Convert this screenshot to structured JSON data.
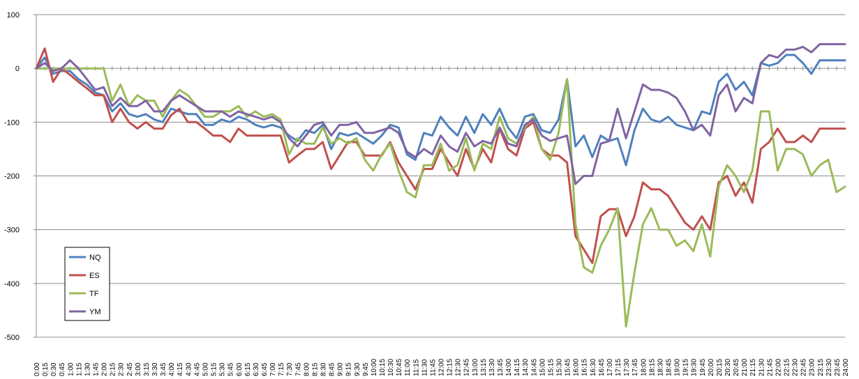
{
  "chart_data": {
    "type": "line",
    "title": "",
    "xlabel": "",
    "ylabel": "",
    "ylim": [
      -500,
      100
    ],
    "yticks": [
      100,
      0,
      -100,
      -200,
      -300,
      -400,
      -500
    ],
    "grid": "horizontal",
    "legend_position": "left",
    "x": [
      "0:00",
      "0:15",
      "0:30",
      "0:45",
      "1:00",
      "1:15",
      "1:30",
      "1:45",
      "2:00",
      "2:15",
      "2:30",
      "2:45",
      "3:00",
      "3:15",
      "3:30",
      "3:45",
      "4:00",
      "4:15",
      "4:30",
      "4:45",
      "5:00",
      "5:15",
      "5:30",
      "5:45",
      "6:00",
      "6:15",
      "6:30",
      "6:45",
      "7:00",
      "7:15",
      "7:30",
      "7:45",
      "8:00",
      "8:15",
      "8:30",
      "8:45",
      "9:00",
      "9:15",
      "9:30",
      "9:45",
      "10:00",
      "10:15",
      "10:30",
      "10:45",
      "11:00",
      "11:15",
      "11:30",
      "11:45",
      "12:00",
      "12:15",
      "12:30",
      "12:45",
      "13:00",
      "13:15",
      "13:30",
      "13:45",
      "14:00",
      "14:15",
      "14:30",
      "14:45",
      "15:00",
      "15:15",
      "15:30",
      "15:45",
      "16:00",
      "16:15",
      "16:30",
      "16:45",
      "17:00",
      "17:15",
      "17:30",
      "17:45",
      "18:00",
      "18:15",
      "18:30",
      "18:45",
      "19:00",
      "19:15",
      "19:30",
      "19:45",
      "20:00",
      "20:15",
      "20:30",
      "20:45",
      "21:00",
      "21:15",
      "21:30",
      "21:45",
      "22:00",
      "22:15",
      "22:30",
      "22:45",
      "23:00",
      "23:15",
      "23:30",
      "23:45",
      "24:00"
    ],
    "series": [
      {
        "name": "NQ",
        "color": "#4f81bd",
        "values": [
          0,
          20,
          -10,
          -5,
          -5,
          -20,
          -30,
          -45,
          -50,
          -80,
          -65,
          -85,
          -90,
          -85,
          -95,
          -100,
          -75,
          -80,
          -85,
          -85,
          -105,
          -105,
          -95,
          -100,
          -90,
          -95,
          -105,
          -110,
          -105,
          -110,
          -125,
          -135,
          -115,
          -120,
          -105,
          -150,
          -120,
          -125,
          -120,
          -130,
          -140,
          -125,
          -105,
          -110,
          -160,
          -170,
          -120,
          -125,
          -90,
          -110,
          -125,
          -90,
          -120,
          -85,
          -105,
          -75,
          -110,
          -130,
          -90,
          -85,
          -115,
          -120,
          -95,
          -20,
          -145,
          -125,
          -165,
          -125,
          -135,
          -130,
          -180,
          -115,
          -75,
          -95,
          -100,
          -90,
          -105,
          -110,
          -115,
          -80,
          -85,
          -25,
          -10,
          -40,
          -25,
          -50,
          10,
          5,
          10,
          25,
          25,
          10,
          -10,
          15,
          15,
          15,
          15
        ]
      },
      {
        "name": "ES",
        "color": "#c0504d",
        "values": [
          0,
          37,
          -25,
          0,
          -12,
          -25,
          -37,
          -50,
          -50,
          -100,
          -75,
          -100,
          -112,
          -100,
          -112,
          -112,
          -87,
          -75,
          -100,
          -100,
          -112,
          -125,
          -125,
          -137,
          -112,
          -125,
          -125,
          -125,
          -125,
          -125,
          -175,
          -162,
          -150,
          -150,
          -137,
          -187,
          -162,
          -137,
          -137,
          -162,
          -162,
          -162,
          -137,
          -175,
          -200,
          -225,
          -187,
          -187,
          -150,
          -175,
          -200,
          -150,
          -187,
          -150,
          -175,
          -112,
          -150,
          -162,
          -112,
          -100,
          -150,
          -162,
          -162,
          -175,
          -312,
          -337,
          -362,
          -275,
          -262,
          -262,
          -312,
          -275,
          -212,
          -225,
          -225,
          -237,
          -262,
          -287,
          -300,
          -275,
          -300,
          -212,
          -200,
          -237,
          -212,
          -250,
          -150,
          -137,
          -112,
          -137,
          -137,
          -125,
          -137,
          -112,
          -112,
          -112,
          -112
        ]
      },
      {
        "name": "TF",
        "color": "#9bbb59",
        "values": [
          0,
          0,
          0,
          0,
          0,
          0,
          0,
          0,
          0,
          -60,
          -30,
          -70,
          -50,
          -60,
          -60,
          -90,
          -60,
          -40,
          -50,
          -70,
          -90,
          -90,
          -80,
          -80,
          -70,
          -90,
          -80,
          -90,
          -85,
          -95,
          -160,
          -130,
          -140,
          -140,
          -110,
          -140,
          -130,
          -140,
          -130,
          -170,
          -190,
          -160,
          -140,
          -190,
          -230,
          -240,
          -180,
          -180,
          -140,
          -190,
          -180,
          -130,
          -190,
          -140,
          -150,
          -90,
          -130,
          -140,
          -110,
          -90,
          -150,
          -170,
          -120,
          -20,
          -290,
          -370,
          -380,
          -330,
          -300,
          -260,
          -480,
          -380,
          -290,
          -260,
          -300,
          -300,
          -330,
          -320,
          -340,
          -290,
          -350,
          -220,
          -180,
          -200,
          -230,
          -190,
          -80,
          -80,
          -190,
          -150,
          -150,
          -160,
          -200,
          -180,
          -170,
          -230,
          -220
        ]
      },
      {
        "name": "YM",
        "color": "#8064a2",
        "values": [
          0,
          10,
          -5,
          0,
          15,
          0,
          -20,
          -40,
          -35,
          -70,
          -55,
          -70,
          -70,
          -60,
          -80,
          -80,
          -60,
          -50,
          -60,
          -70,
          -80,
          -80,
          -80,
          -90,
          -80,
          -85,
          -90,
          -95,
          -90,
          -100,
          -130,
          -145,
          -125,
          -105,
          -100,
          -125,
          -105,
          -105,
          -100,
          -120,
          -120,
          -115,
          -110,
          -120,
          -155,
          -165,
          -150,
          -160,
          -125,
          -145,
          -155,
          -120,
          -145,
          -135,
          -140,
          -110,
          -140,
          -145,
          -105,
          -95,
          -125,
          -135,
          -130,
          -125,
          -215,
          -200,
          -200,
          -140,
          -135,
          -75,
          -130,
          -80,
          -30,
          -40,
          -40,
          -45,
          -55,
          -80,
          -115,
          -105,
          -125,
          -50,
          -30,
          -80,
          -55,
          -65,
          10,
          25,
          20,
          35,
          35,
          40,
          30,
          45,
          45,
          45,
          45
        ]
      }
    ]
  }
}
